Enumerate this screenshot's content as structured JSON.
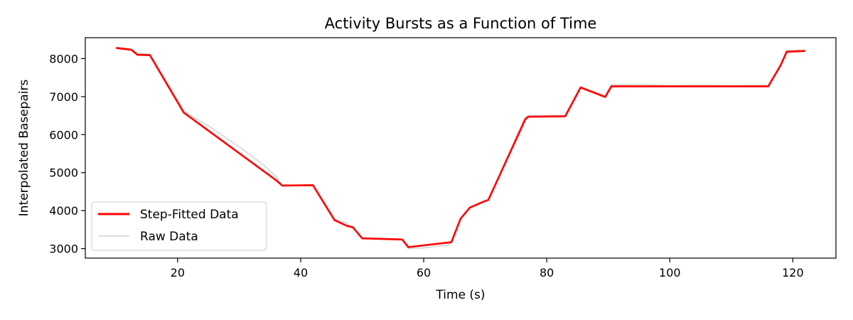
{
  "chart_data": {
    "type": "line",
    "title": "Activity Bursts as a Function of Time",
    "xlabel": "Time (s)",
    "ylabel": "Interpolated Basepairs",
    "xlim": [
      5,
      127
    ],
    "ylim": [
      2750,
      8550
    ],
    "xticks": [
      20,
      40,
      60,
      80,
      100,
      120
    ],
    "yticks": [
      3000,
      4000,
      5000,
      6000,
      7000,
      8000
    ],
    "grid": false,
    "legend_position": "lower-left",
    "series": [
      {
        "name": "Step-Fitted Data",
        "color": "#ff0000",
        "x": [
          10,
          12.5,
          13.5,
          15.5,
          21,
          36,
          37,
          42,
          45.5,
          47.5,
          48.5,
          50,
          56.5,
          57.5,
          64.5,
          66,
          67.5,
          69.5,
          70.5,
          76.5,
          77,
          83,
          85.5,
          89.5,
          90.5,
          116,
          118,
          119,
          122
        ],
        "y": [
          8280,
          8230,
          8100,
          8090,
          6580,
          4800,
          4660,
          4670,
          3750,
          3600,
          3560,
          3270,
          3240,
          3040,
          3170,
          3790,
          4080,
          4220,
          4280,
          6400,
          6470,
          6480,
          7240,
          6990,
          7270,
          7270,
          7820,
          8180,
          8200
        ]
      },
      {
        "name": "Raw Data",
        "color": "#d3d3d3",
        "x": [
          10,
          12.5,
          13.5,
          15.5,
          21,
          25,
          30,
          34,
          36,
          37,
          42,
          45.5,
          47.5,
          48.5,
          50,
          56.5,
          57.5,
          60,
          64,
          64.5,
          66,
          67.5,
          69.5,
          70.5,
          76.5,
          77,
          83,
          85.5,
          89.5,
          90.5,
          95,
          100,
          105,
          110,
          116,
          118,
          119,
          122
        ],
        "y": [
          8300,
          8260,
          8140,
          8120,
          6620,
          6230,
          5680,
          5200,
          4900,
          4650,
          4660,
          3780,
          3670,
          3540,
          3290,
          3250,
          3000,
          3020,
          3100,
          3150,
          3800,
          4090,
          4230,
          4300,
          6450,
          6500,
          6510,
          7260,
          7030,
          7310,
          7320,
          7290,
          7300,
          7290,
          7300,
          7840,
          8210,
          8230
        ]
      }
    ]
  }
}
